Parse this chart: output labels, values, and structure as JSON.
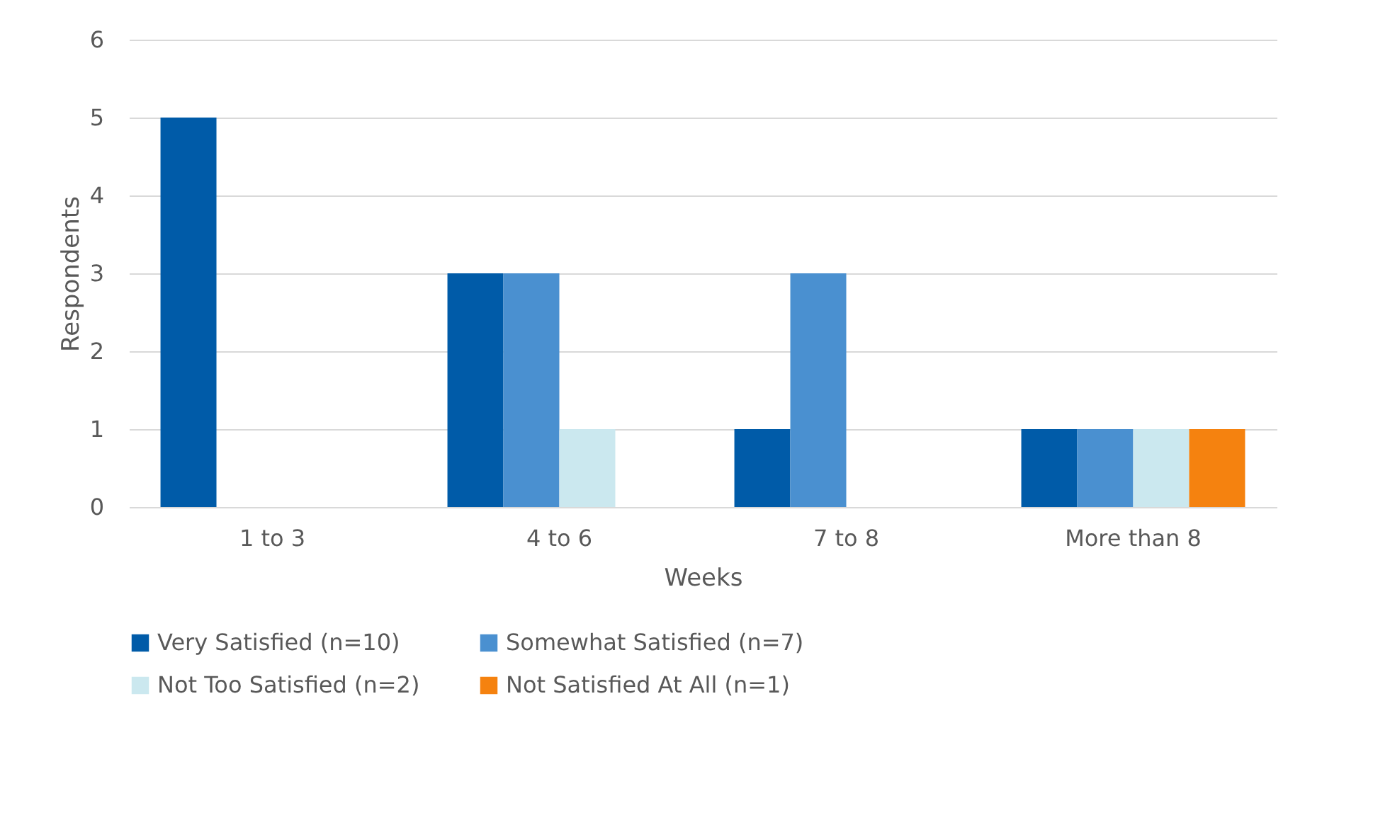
{
  "chart_data": {
    "type": "bar",
    "xlabel": "Weeks",
    "ylabel": "Respondents",
    "categories": [
      "1 to 3",
      "4 to 6",
      "7 to 8",
      "More than 8"
    ],
    "series": [
      {
        "name": "Very Satisfied (n=10)",
        "color": "#005ba8",
        "values": [
          5,
          3,
          1,
          1
        ]
      },
      {
        "name": "Somewhat Satisfied (n=7)",
        "color": "#4a90d0",
        "values": [
          0,
          3,
          3,
          1
        ]
      },
      {
        "name": "Not Too Satisfied (n=2)",
        "color": "#cbe8ef",
        "values": [
          0,
          1,
          0,
          1
        ]
      },
      {
        "name": "Not Satisfied At All (n=1)",
        "color": "#f5820f",
        "values": [
          0,
          0,
          0,
          1
        ]
      }
    ],
    "ylim": [
      0,
      6
    ],
    "yticks": [
      0,
      1,
      2,
      3,
      4,
      5,
      6
    ],
    "grid": "y",
    "legend": "bottom"
  }
}
